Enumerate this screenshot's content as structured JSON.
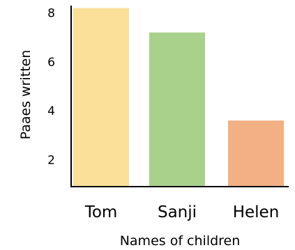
{
  "chart_data": {
    "type": "bar",
    "categories": [
      "Tom",
      "Sanji",
      "Helen"
    ],
    "values": [
      8.2,
      7.2,
      3.6
    ],
    "colors": [
      "#fbe09a",
      "#aad18c",
      "#f2b084"
    ],
    "xlabel": "Names of children",
    "ylabel": "Paaes written",
    "ylim": [
      0.9,
      8.3
    ],
    "yticks": [
      2,
      4,
      6,
      8
    ],
    "ytick_labels": [
      "2",
      "4",
      "6",
      "8"
    ],
    "grid": false,
    "legend": false
  }
}
